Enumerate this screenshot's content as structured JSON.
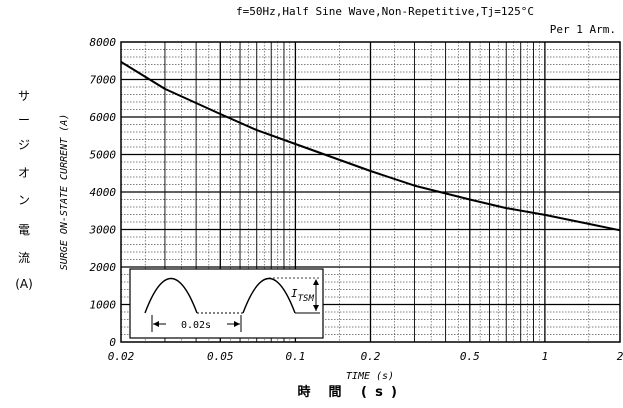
{
  "chart_data": {
    "type": "line",
    "title": "f=50Hz,Half Sine Wave,Non-Repetitive,Tj=125°C",
    "corner_label": "Per 1 Arm.",
    "xlabel": "TIME (s)",
    "xlabel_jp": [
      "時",
      "間",
      "(",
      "s",
      ")"
    ],
    "ylabel": "SURGE ON-STATE CURRENT (A)",
    "ylabel_jp": [
      "サ",
      "ー",
      "ジ",
      "オ",
      "ン",
      "電",
      "流",
      "(A)"
    ],
    "x_scale": "log",
    "xlim": [
      0.02,
      2
    ],
    "ylim": [
      0,
      8000
    ],
    "x_ticks": [
      0.02,
      0.05,
      0.1,
      0.2,
      0.5,
      1,
      2
    ],
    "x_tick_labels": [
      "0.02",
      "0.05",
      "0.1",
      "0.2",
      "0.5",
      "1",
      "2"
    ],
    "y_ticks": [
      0,
      1000,
      2000,
      3000,
      4000,
      5000,
      6000,
      7000,
      8000
    ],
    "y_tick_labels": [
      "0",
      "1000",
      "2000",
      "3000",
      "4000",
      "5000",
      "6000",
      "7000",
      "8000"
    ],
    "grid": true,
    "series": [
      {
        "x": [
          0.02,
          0.03,
          0.05,
          0.07,
          0.1,
          0.2,
          0.3,
          0.5,
          0.7,
          1,
          1.5,
          2
        ],
        "y": [
          7470,
          6750,
          6080,
          5650,
          5280,
          4560,
          4170,
          3800,
          3570,
          3390,
          3150,
          2980
        ]
      }
    ],
    "inset": {
      "interval_label": "0.02s",
      "current_label": "I",
      "current_subscript": "TSM"
    }
  }
}
